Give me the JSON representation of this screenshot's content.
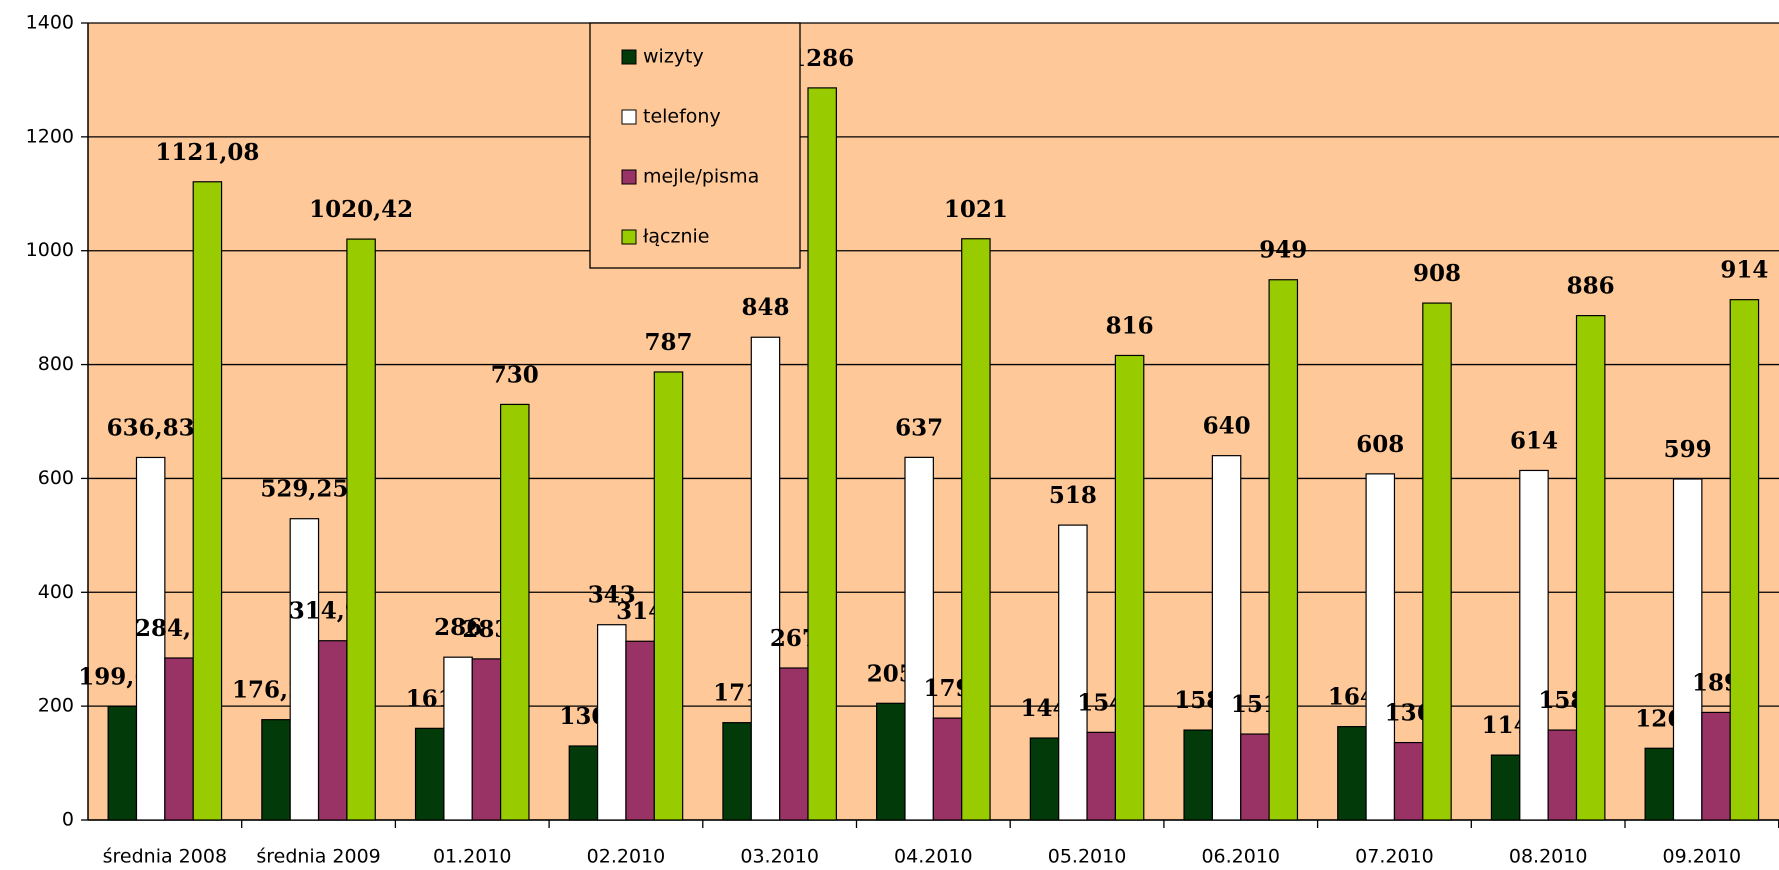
{
  "chart_data": {
    "type": "bar",
    "categories": [
      "średnia 2008",
      "średnia 2009",
      "01.2010",
      "02.2010",
      "03.2010",
      "04.2010",
      "05.2010",
      "06.2010",
      "07.2010",
      "08.2010",
      "09.2010"
    ],
    "series": [
      {
        "name": "wizyty",
        "color": "#033a0a",
        "values": [
          199.67,
          176.25,
          161,
          130,
          171,
          205,
          144,
          158,
          164,
          114,
          126
        ],
        "value_labels": [
          "199,67",
          "176,25",
          "161",
          "130",
          "171",
          "205",
          "144",
          "158",
          "164",
          "114",
          "126"
        ]
      },
      {
        "name": "telefony",
        "color": "#ffffff",
        "values": [
          636.83,
          529.25,
          286,
          343,
          848,
          637,
          518,
          640,
          608,
          614,
          599
        ],
        "value_labels": [
          "636,83",
          "529,25",
          "286",
          "343",
          "848",
          "637",
          "518",
          "640",
          "608",
          "614",
          "599"
        ]
      },
      {
        "name": "mejle/pisma",
        "color": "#993366",
        "values": [
          284.58,
          314.92,
          283,
          314,
          267,
          179,
          154,
          151,
          136,
          158,
          189
        ],
        "value_labels": [
          "284,58",
          "314,92",
          "283",
          "314",
          "267",
          "179",
          "154",
          "151",
          "136",
          "158",
          "189"
        ]
      },
      {
        "name": "łącznie",
        "color": "#99cc00",
        "values": [
          1121.08,
          1020.42,
          730,
          787,
          1286,
          1021,
          816,
          949,
          908,
          886,
          914
        ],
        "value_labels": [
          "1121,08",
          "1020,42",
          "730",
          "787",
          "1286",
          "1021",
          "816",
          "949",
          "908",
          "886",
          "914"
        ]
      }
    ],
    "ylim": [
      0,
      1400
    ],
    "yticks": [
      0,
      200,
      400,
      600,
      800,
      1000,
      1200,
      1400
    ],
    "grid": true
  }
}
